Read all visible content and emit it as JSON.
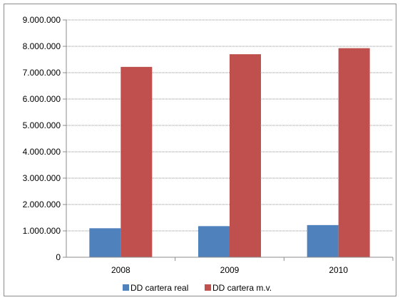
{
  "chart_data": {
    "type": "bar",
    "categories": [
      "2008",
      "2009",
      "2010"
    ],
    "series": [
      {
        "name": "DD cartera real",
        "values": [
          1100000,
          1180000,
          1220000
        ],
        "color": "#4f81bd"
      },
      {
        "name": "DD cartera m.v.",
        "values": [
          7220000,
          7700000,
          7930000
        ],
        "color": "#c0504d"
      }
    ],
    "y_ticks": [
      "0",
      "1.000.000",
      "2.000.000",
      "3.000.000",
      "4.000.000",
      "5.000.000",
      "6.000.000",
      "7.000.000",
      "8.000.000",
      "9.000.000"
    ],
    "ylim": [
      0,
      9000000
    ],
    "y_step": 1000000,
    "grid": true,
    "legend_position": "bottom"
  }
}
